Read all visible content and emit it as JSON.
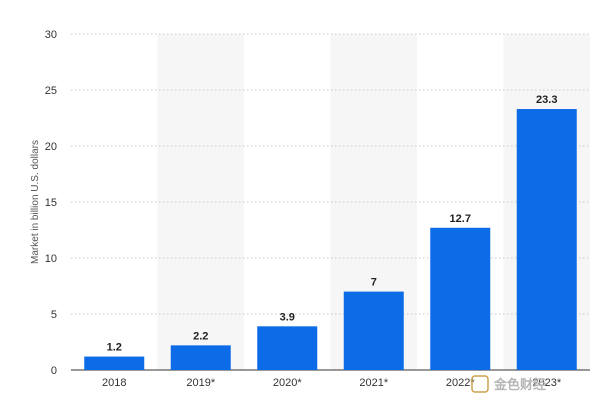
{
  "chart_data": {
    "type": "bar",
    "categories": [
      "2018",
      "2019*",
      "2020*",
      "2021*",
      "2022*",
      "2023*"
    ],
    "values": [
      1.2,
      2.2,
      3.9,
      7,
      12.7,
      23.3
    ],
    "data_labels": [
      "1.2",
      "2.2",
      "3.9",
      "7",
      "12.7",
      "23.3"
    ],
    "ylabel": "Market in billion U.S. dollars",
    "ylim": [
      0,
      30
    ],
    "yticks": [
      0,
      5,
      10,
      15,
      20,
      25,
      30
    ],
    "grid": true,
    "bar_color": "#0c6be6",
    "alt_band_color": "#f6f6f6",
    "gridline_color": "#c8c8c8"
  },
  "watermark": {
    "text": "金色财经",
    "color": "#b5b5b5"
  }
}
